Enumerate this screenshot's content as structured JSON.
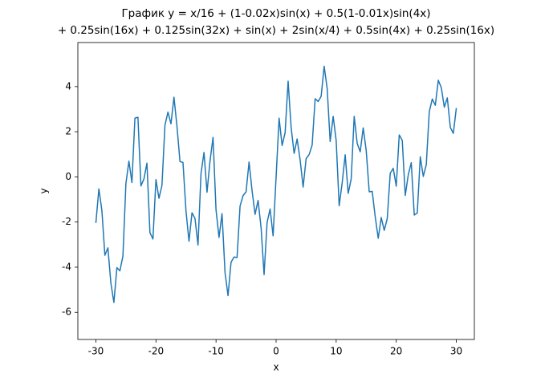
{
  "chart_data": {
    "type": "line",
    "title": [
      "График y = x/16 + (1-0.02x)sin(x) + 0.5(1-0.01x)sin(4x)",
      "+ 0.25sin(16x) + 0.125sin(32x) + sin(x) + 2sin(x/4) + 0.5sin(4x) + 0.25sin(16x)"
    ],
    "x_label": "x",
    "y_label": "y",
    "color": "#1f77b4",
    "x": [
      -30,
      -29.5,
      -29,
      -28.5,
      -28,
      -27.5,
      -27,
      -26.5,
      -26,
      -25.5,
      -25,
      -24.5,
      -24,
      -23.5,
      -23,
      -22.5,
      -22,
      -21.5,
      -21,
      -20.5,
      -20,
      -19.5,
      -19,
      -18.5,
      -18,
      -17.5,
      -17,
      -16.5,
      -16,
      -15.5,
      -15,
      -14.5,
      -14,
      -13.5,
      -13,
      -12.5,
      -12,
      -11.5,
      -11,
      -10.5,
      -10,
      -9.5,
      -9,
      -8.5,
      -8,
      -7.5,
      -7,
      -6.5,
      -6,
      -5.5,
      -5,
      -4.5,
      -4,
      -3.5,
      -3,
      -2.5,
      -2,
      -1.5,
      -1,
      -0.5,
      0,
      0.5,
      1,
      1.5,
      2,
      2.5,
      3,
      3.5,
      4,
      4.5,
      5,
      5.5,
      6,
      6.5,
      7,
      7.5,
      8,
      8.5,
      9,
      9.5,
      10,
      10.5,
      11,
      11.5,
      12,
      12.5,
      13,
      13.5,
      14,
      14.5,
      15,
      15.5,
      16,
      16.5,
      17,
      17.5,
      18,
      18.5,
      19,
      19.5,
      20,
      20.5,
      21,
      21.5,
      22,
      22.5,
      23,
      23.5,
      24,
      24.5,
      25,
      25.5,
      26,
      26.5,
      27,
      27.5,
      28,
      28.5,
      29,
      29.5,
      30
    ],
    "values": [
      -2.04,
      -0.53,
      -1.49,
      -3.47,
      -3.14,
      -4.71,
      -5.56,
      -4.02,
      -4.16,
      -3.51,
      -0.29,
      0.7,
      -0.25,
      2.6,
      2.64,
      -0.4,
      -0.09,
      0.61,
      -2.47,
      -2.75,
      -0.12,
      -0.95,
      -0.38,
      2.29,
      2.87,
      2.35,
      3.53,
      2.24,
      0.68,
      0.64,
      -1.51,
      -2.85,
      -1.59,
      -1.84,
      -3.02,
      0.15,
      1.08,
      -0.68,
      0.7,
      1.75,
      -1.46,
      -2.68,
      -1.63,
      -4.24,
      -5.26,
      -3.78,
      -3.55,
      -3.57,
      -1.29,
      -0.83,
      -0.66,
      0.66,
      -0.61,
      -1.66,
      -1.04,
      -2.25,
      -4.33,
      -2.02,
      -1.42,
      -2.61,
      0,
      2.6,
      1.39,
      1.96,
      4.24,
      2.2,
      1.04,
      1.68,
      0.75,
      -0.45,
      0.81,
      0.99,
      1.41,
      3.46,
      3.34,
      3.57,
      4.9,
      3.92,
      1.57,
      2.68,
      1.61,
      -1.28,
      -0.26,
      0.98,
      -0.73,
      -0.09,
      2.68,
      1.48,
      1.11,
      2.17,
      1.17,
      -0.66,
      -0.64,
      -1.77,
      -2.72,
      -1.8,
      -2.37,
      -1.85,
      0.16,
      0.38,
      -0.41,
      1.86,
      1.62,
      -0.82,
      0.09,
      0.63,
      -1.69,
      -1.6,
      0.89,
      0.02,
      0.54,
      2.89,
      3.45,
      3.17,
      4.28,
      3.95,
      3.09,
      3.5,
      2.19,
      1.93,
      3.05
    ],
    "xlim": [
      -33,
      33
    ],
    "ylim": [
      -7.2,
      5.95
    ],
    "xticks": [
      -30,
      -20,
      -10,
      0,
      10,
      20,
      30
    ],
    "yticks": [
      -6,
      -4,
      -2,
      0,
      2,
      4
    ],
    "grid": false
  }
}
